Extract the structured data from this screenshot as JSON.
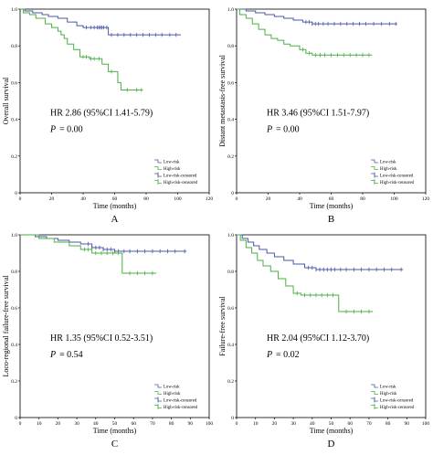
{
  "chart_data": [
    {
      "type": "line",
      "panel_letter": "A",
      "ylabel": "Overall survival",
      "xlabel": "Time (months)",
      "xlim": [
        0,
        120
      ],
      "ylim": [
        0,
        1.0
      ],
      "x_ticks": [
        "0",
        "20",
        "40",
        "60",
        "80",
        "100",
        "120"
      ],
      "y_ticks": [
        "0",
        "0.2",
        "0.4",
        "0.6",
        "0.8",
        "1.0"
      ],
      "hr_text": "HR 2.86 (95%CI 1.41-5.79)",
      "p_label": "P",
      "p_value": "= 0.00",
      "legend": {
        "position": "bottom-right",
        "items": [
          "Low-risk",
          "High-risk",
          "Low-risk-censored",
          "High-risk-censored"
        ]
      },
      "series": [
        {
          "name": "Low-risk",
          "color": "#4a5aa6",
          "step": [
            [
              0,
              1
            ],
            [
              3,
              1
            ],
            [
              3,
              0.99
            ],
            [
              8,
              0.99
            ],
            [
              8,
              0.98
            ],
            [
              14,
              0.98
            ],
            [
              14,
              0.97
            ],
            [
              18,
              0.97
            ],
            [
              18,
              0.96
            ],
            [
              24,
              0.96
            ],
            [
              24,
              0.95
            ],
            [
              30,
              0.95
            ],
            [
              30,
              0.93
            ],
            [
              36,
              0.93
            ],
            [
              36,
              0.91
            ],
            [
              40,
              0.91
            ],
            [
              40,
              0.9
            ],
            [
              56,
              0.9
            ],
            [
              56,
              0.86
            ],
            [
              102,
              0.86
            ]
          ],
          "censored": [
            42,
            45,
            47,
            49,
            50,
            51,
            52,
            53,
            55,
            58,
            62,
            66,
            70,
            74,
            78,
            82,
            86,
            90,
            95,
            99
          ]
        },
        {
          "name": "High-risk",
          "color": "#4caf45",
          "step": [
            [
              0,
              1
            ],
            [
              2,
              1
            ],
            [
              2,
              0.98
            ],
            [
              6,
              0.98
            ],
            [
              6,
              0.97
            ],
            [
              10,
              0.97
            ],
            [
              10,
              0.95
            ],
            [
              16,
              0.95
            ],
            [
              16,
              0.92
            ],
            [
              20,
              0.92
            ],
            [
              20,
              0.9
            ],
            [
              24,
              0.9
            ],
            [
              24,
              0.88
            ],
            [
              26,
              0.88
            ],
            [
              26,
              0.86
            ],
            [
              28,
              0.86
            ],
            [
              28,
              0.84
            ],
            [
              30,
              0.84
            ],
            [
              30,
              0.81
            ],
            [
              34,
              0.81
            ],
            [
              34,
              0.78
            ],
            [
              38,
              0.78
            ],
            [
              38,
              0.74
            ],
            [
              44,
              0.74
            ],
            [
              44,
              0.73
            ],
            [
              52,
              0.73
            ],
            [
              52,
              0.7
            ],
            [
              56,
              0.7
            ],
            [
              56,
              0.66
            ],
            [
              62,
              0.66
            ],
            [
              62,
              0.6
            ],
            [
              64,
              0.6
            ],
            [
              64,
              0.56
            ],
            [
              78,
              0.56
            ]
          ],
          "censored": [
            40,
            42,
            45,
            47,
            50,
            58,
            68,
            74,
            77
          ]
        }
      ]
    },
    {
      "type": "line",
      "panel_letter": "B",
      "ylabel": "Distant metastasis-free survival",
      "xlabel": "Time (months)",
      "xlim": [
        0,
        120
      ],
      "ylim": [
        0,
        1.0
      ],
      "x_ticks": [
        "0",
        "20",
        "40",
        "60",
        "80",
        "100",
        "120"
      ],
      "y_ticks": [
        "0",
        "0.2",
        "0.4",
        "0.6",
        "0.8",
        "1.0"
      ],
      "hr_text": "HR 3.46 (95%CI 1.51-7.97)",
      "p_label": "P",
      "p_value": "= 0.00",
      "legend": {
        "position": "bottom-right",
        "items": [
          "Low-risk",
          "High-risk",
          "Low-risk-censored",
          "High-risk-censored"
        ]
      },
      "series": [
        {
          "name": "Low-risk",
          "color": "#4a5aa6",
          "step": [
            [
              0,
              1
            ],
            [
              6,
              1
            ],
            [
              6,
              0.99
            ],
            [
              12,
              0.99
            ],
            [
              12,
              0.98
            ],
            [
              18,
              0.98
            ],
            [
              18,
              0.97
            ],
            [
              24,
              0.97
            ],
            [
              24,
              0.96
            ],
            [
              30,
              0.96
            ],
            [
              30,
              0.95
            ],
            [
              36,
              0.95
            ],
            [
              36,
              0.94
            ],
            [
              42,
              0.94
            ],
            [
              42,
              0.93
            ],
            [
              48,
              0.93
            ],
            [
              48,
              0.92
            ],
            [
              102,
              0.92
            ]
          ],
          "censored": [
            44,
            46,
            48,
            50,
            52,
            55,
            58,
            62,
            66,
            70,
            74,
            78,
            82,
            87,
            92,
            97,
            101
          ]
        },
        {
          "name": "High-risk",
          "color": "#4caf45",
          "step": [
            [
              0,
              1
            ],
            [
              2,
              1
            ],
            [
              2,
              0.97
            ],
            [
              6,
              0.97
            ],
            [
              6,
              0.95
            ],
            [
              10,
              0.95
            ],
            [
              10,
              0.92
            ],
            [
              14,
              0.92
            ],
            [
              14,
              0.89
            ],
            [
              18,
              0.89
            ],
            [
              18,
              0.86
            ],
            [
              22,
              0.86
            ],
            [
              22,
              0.84
            ],
            [
              26,
              0.84
            ],
            [
              26,
              0.83
            ],
            [
              30,
              0.83
            ],
            [
              30,
              0.81
            ],
            [
              34,
              0.81
            ],
            [
              34,
              0.8
            ],
            [
              40,
              0.8
            ],
            [
              40,
              0.78
            ],
            [
              44,
              0.78
            ],
            [
              44,
              0.76
            ],
            [
              48,
              0.76
            ],
            [
              48,
              0.75
            ],
            [
              86,
              0.75
            ]
          ],
          "censored": [
            42,
            46,
            50,
            53,
            56,
            60,
            64,
            68,
            72,
            76,
            80,
            84
          ]
        }
      ]
    },
    {
      "type": "line",
      "panel_letter": "C",
      "ylabel": "Loco-regional failure-free survival",
      "xlabel": "Time (months)",
      "xlim": [
        0,
        100
      ],
      "ylim": [
        0,
        1.0
      ],
      "x_ticks": [
        "0",
        "10",
        "20",
        "30",
        "40",
        "50",
        "60",
        "70",
        "80",
        "90",
        "100"
      ],
      "y_ticks": [
        "0",
        "0.2",
        "0.4",
        "0.6",
        "0.8",
        "1.0"
      ],
      "hr_text": "HR 1.35 (95%CI 0.52-3.51)",
      "p_label": "P",
      "p_value": "= 0.54",
      "legend": {
        "position": "bottom-right",
        "items": [
          "Low-risk",
          "High-risk",
          "Low-risk-censored",
          "High-risk-censored"
        ]
      },
      "series": [
        {
          "name": "Low-risk",
          "color": "#4a5aa6",
          "step": [
            [
              0,
              1
            ],
            [
              8,
              1
            ],
            [
              8,
              0.99
            ],
            [
              14,
              0.99
            ],
            [
              14,
              0.98
            ],
            [
              20,
              0.98
            ],
            [
              20,
              0.97
            ],
            [
              26,
              0.97
            ],
            [
              26,
              0.96
            ],
            [
              32,
              0.96
            ],
            [
              32,
              0.95
            ],
            [
              38,
              0.95
            ],
            [
              38,
              0.93
            ],
            [
              44,
              0.93
            ],
            [
              44,
              0.92
            ],
            [
              50,
              0.92
            ],
            [
              50,
              0.91
            ],
            [
              88,
              0.91
            ]
          ],
          "censored": [
            36,
            38,
            40,
            42,
            44,
            46,
            48,
            50,
            52,
            55,
            58,
            62,
            66,
            70,
            74,
            78,
            82,
            87
          ]
        },
        {
          "name": "High-risk",
          "color": "#4caf45",
          "step": [
            [
              0,
              1
            ],
            [
              10,
              1
            ],
            [
              10,
              0.98
            ],
            [
              18,
              0.98
            ],
            [
              18,
              0.96
            ],
            [
              26,
              0.96
            ],
            [
              26,
              0.94
            ],
            [
              32,
              0.94
            ],
            [
              32,
              0.92
            ],
            [
              38,
              0.92
            ],
            [
              38,
              0.9
            ],
            [
              54,
              0.9
            ],
            [
              54,
              0.79
            ],
            [
              72,
              0.79
            ]
          ],
          "censored": [
            34,
            36,
            40,
            43,
            46,
            49,
            52,
            58,
            62,
            66,
            70
          ]
        }
      ]
    },
    {
      "type": "line",
      "panel_letter": "D",
      "ylabel": "Failure-free survival",
      "xlabel": "Time (months)",
      "xlim": [
        0,
        100
      ],
      "ylim": [
        0,
        1.0
      ],
      "x_ticks": [
        "0",
        "10",
        "20",
        "30",
        "40",
        "50",
        "60",
        "70",
        "80",
        "90",
        "100"
      ],
      "y_ticks": [
        "0",
        "0.2",
        "0.4",
        "0.6",
        "0.8",
        "1.0"
      ],
      "hr_text": "HR 2.04 (95%CI 1.12-3.70)",
      "p_label": "P",
      "p_value": "= 0.02",
      "legend": {
        "position": "bottom-right",
        "items": [
          "Low-risk",
          "High-risk",
          "Low-risk-censored",
          "High-risk-censored"
        ]
      },
      "series": [
        {
          "name": "Low-risk",
          "color": "#4a5aa6",
          "step": [
            [
              0,
              1
            ],
            [
              3,
              1
            ],
            [
              3,
              0.98
            ],
            [
              6,
              0.98
            ],
            [
              6,
              0.96
            ],
            [
              9,
              0.96
            ],
            [
              9,
              0.94
            ],
            [
              12,
              0.94
            ],
            [
              12,
              0.92
            ],
            [
              16,
              0.92
            ],
            [
              16,
              0.9
            ],
            [
              20,
              0.9
            ],
            [
              20,
              0.88
            ],
            [
              25,
              0.88
            ],
            [
              25,
              0.86
            ],
            [
              30,
              0.86
            ],
            [
              30,
              0.84
            ],
            [
              36,
              0.84
            ],
            [
              36,
              0.82
            ],
            [
              42,
              0.82
            ],
            [
              42,
              0.81
            ],
            [
              88,
              0.81
            ]
          ],
          "censored": [
            38,
            40,
            42,
            44,
            46,
            48,
            50,
            52,
            55,
            58,
            62,
            66,
            70,
            74,
            78,
            82,
            87
          ]
        },
        {
          "name": "High-risk",
          "color": "#4caf45",
          "step": [
            [
              0,
              1
            ],
            [
              2,
              1
            ],
            [
              2,
              0.97
            ],
            [
              5,
              0.97
            ],
            [
              5,
              0.93
            ],
            [
              8,
              0.93
            ],
            [
              8,
              0.9
            ],
            [
              11,
              0.9
            ],
            [
              11,
              0.86
            ],
            [
              14,
              0.86
            ],
            [
              14,
              0.83
            ],
            [
              18,
              0.83
            ],
            [
              18,
              0.8
            ],
            [
              22,
              0.8
            ],
            [
              22,
              0.76
            ],
            [
              26,
              0.76
            ],
            [
              26,
              0.72
            ],
            [
              30,
              0.72
            ],
            [
              30,
              0.68
            ],
            [
              34,
              0.68
            ],
            [
              34,
              0.67
            ],
            [
              54,
              0.67
            ],
            [
              54,
              0.58
            ],
            [
              72,
              0.58
            ]
          ],
          "censored": [
            32,
            36,
            39,
            42,
            45,
            48,
            51,
            58,
            62,
            66,
            70
          ]
        }
      ]
    }
  ]
}
